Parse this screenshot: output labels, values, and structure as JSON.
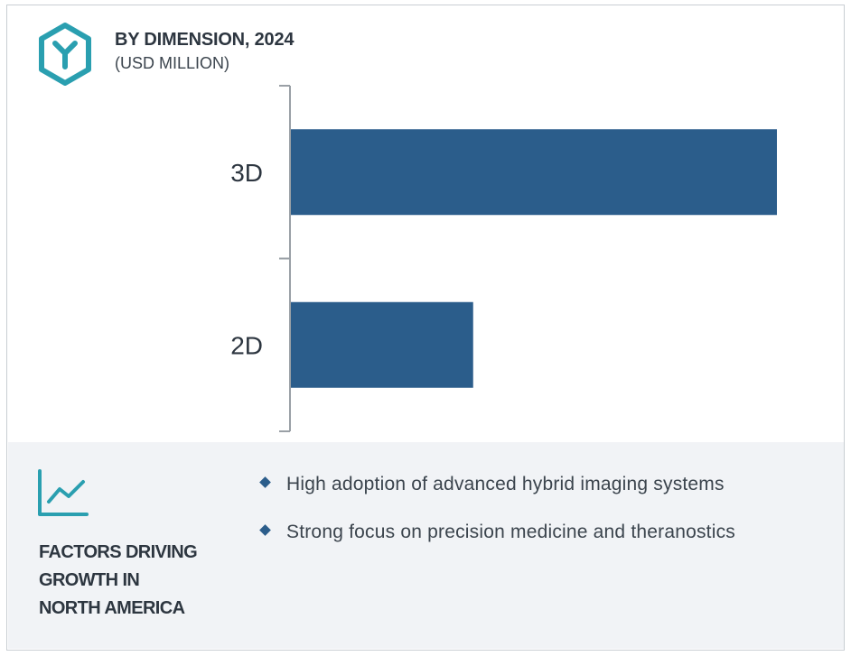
{
  "header": {
    "title": "BY DIMENSION, 2024",
    "subtitle": "(USD MILLION)",
    "icon": "hexagon-y-logo-icon"
  },
  "colors": {
    "bar": "#2b5d8b",
    "accent": "#2a9fb0",
    "text": "#2d3640",
    "panel": "#f1f3f6"
  },
  "chart_data": {
    "type": "bar",
    "orientation": "horizontal",
    "categories": [
      "3D",
      "2D"
    ],
    "values": [
      100,
      37.5
    ],
    "title": "BY DIMENSION, 2024",
    "subtitle": "(USD MILLION)",
    "xlabel": "",
    "ylabel": "",
    "xlim": [
      0,
      100
    ],
    "grid": false,
    "legend": "none",
    "note": "values are relative bar lengths; no numeric axis is shown"
  },
  "factors": {
    "icon": "trend-line-icon",
    "title": "FACTORS DRIVING\nGROWTH IN\nNORTH AMERICA",
    "items": [
      "High adoption of advanced hybrid imaging systems",
      "Strong focus on precision medicine and theranostics"
    ]
  }
}
